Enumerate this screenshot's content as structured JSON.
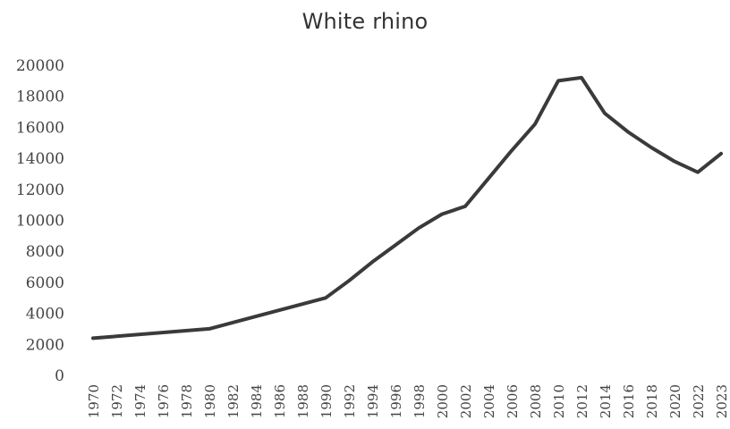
{
  "chart_data": {
    "type": "line",
    "title": "White rhino",
    "xlabel": "",
    "ylabel": "",
    "grid": false,
    "legend": "none",
    "x": [
      1970,
      1980,
      1985,
      1990,
      1992,
      1994,
      1996,
      1998,
      2000,
      2002,
      2004,
      2006,
      2008,
      2010,
      2012,
      2014,
      2016,
      2018,
      2020,
      2022,
      2023
    ],
    "series": [
      {
        "values": [
          2400,
          3000,
          4000,
          5000,
          6100,
          7300,
          8400,
          9500,
          10400,
          10900,
          12700,
          14500,
          16200,
          19000,
          19200,
          16900,
          15700,
          14700,
          13800,
          13100,
          14300
        ],
        "color": "#3a3a3a"
      }
    ],
    "yticks": [
      0,
      2000,
      4000,
      6000,
      8000,
      10000,
      12000,
      14000,
      16000,
      18000,
      20000
    ],
    "xticks": [
      "1970",
      "1972",
      "1974",
      "1976",
      "1978",
      "1980",
      "1982",
      "1984",
      "1986",
      "1988",
      "1990",
      "1992",
      "1994",
      "1996",
      "1998",
      "2000",
      "2002",
      "2004",
      "2006",
      "2008",
      "2010",
      "2012",
      "2014",
      "2016",
      "2018",
      "2020",
      "2022",
      "2023"
    ],
    "ylim": [
      0,
      20000
    ]
  }
}
